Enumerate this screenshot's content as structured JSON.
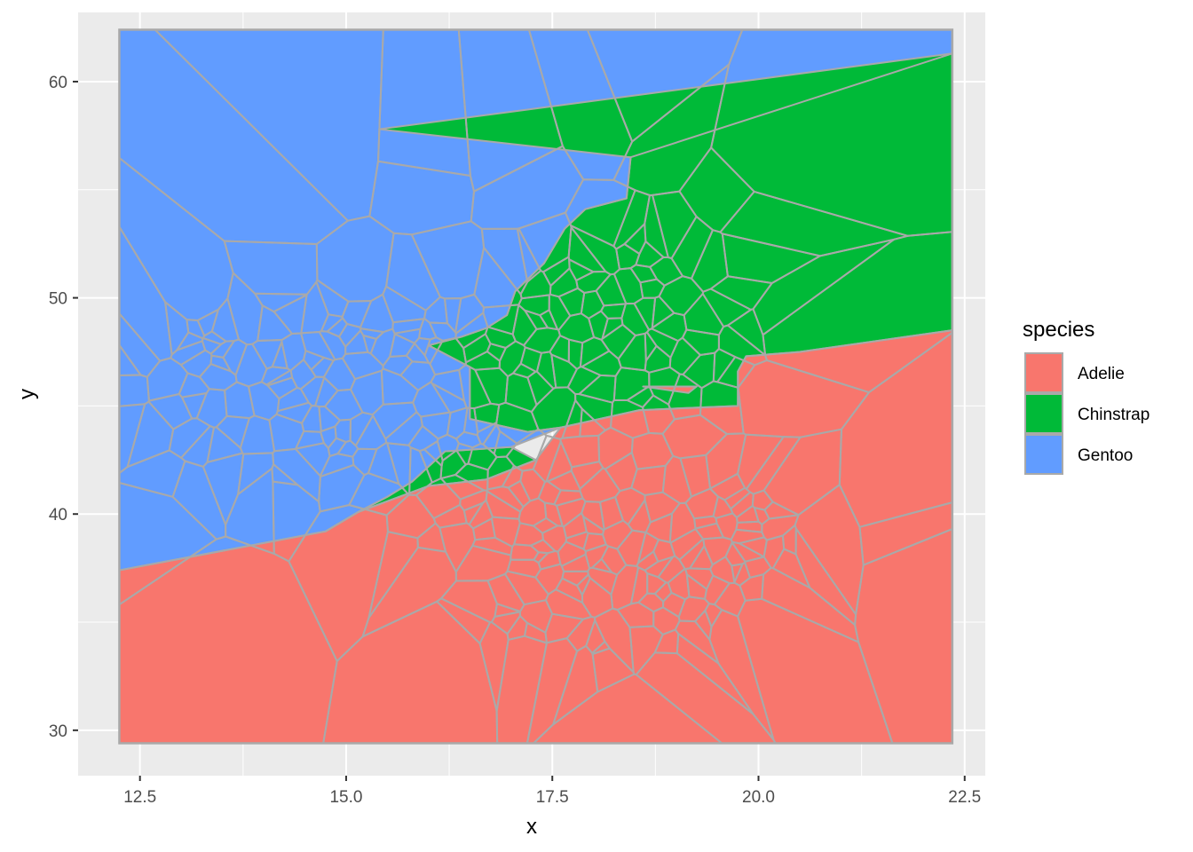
{
  "chart_data": {
    "type": "voronoi",
    "title": "",
    "xlabel": "x",
    "ylabel": "y",
    "xlim": [
      11.75,
      22.75
    ],
    "ylim": [
      27.9,
      63.2
    ],
    "bbox_data": [
      12.25,
      22.35,
      29.4,
      62.4
    ],
    "xticks": [
      12.5,
      15.0,
      17.5,
      20.0,
      22.5
    ],
    "xtick_labels": [
      "12.5",
      "15.0",
      "17.5",
      "20.0",
      "22.5"
    ],
    "yticks": [
      30,
      40,
      50,
      60
    ],
    "ytick_labels": [
      "30",
      "40",
      "50",
      "60"
    ],
    "grid": true,
    "legend": {
      "title": "species",
      "position": "right",
      "entries": [
        {
          "name": "Adelie",
          "color": "#F8766D"
        },
        {
          "name": "Chinstrap",
          "color": "#00BA38"
        },
        {
          "name": "Gentoo",
          "color": "#619CFF"
        }
      ]
    },
    "colors": {
      "panel": "#EBEBEB",
      "grid_major": "#FFFFFF",
      "cell_border": "#A9A9A9",
      "Adelie": "#F8766D",
      "Chinstrap": "#00BA38",
      "Gentoo": "#619CFF"
    },
    "regions": [
      {
        "species": "Gentoo",
        "polygon": [
          [
            12.25,
            62.4
          ],
          [
            22.35,
            62.4
          ],
          [
            22.35,
            61.3
          ],
          [
            18.45,
            56.5
          ],
          [
            18.4,
            54.6
          ],
          [
            17.9,
            54.1
          ],
          [
            17.65,
            53.2
          ],
          [
            17.4,
            51.6
          ],
          [
            17.05,
            50.3
          ],
          [
            16.95,
            49.2
          ],
          [
            16.7,
            48.6
          ],
          [
            16.4,
            48.2
          ],
          [
            16.0,
            47.8
          ],
          [
            16.5,
            46.8
          ],
          [
            16.5,
            44.4
          ],
          [
            17.2,
            43.8
          ],
          [
            17.6,
            44.0
          ],
          [
            17.0,
            43.1
          ],
          [
            16.2,
            42.9
          ],
          [
            15.8,
            41.5
          ],
          [
            15.5,
            40.8
          ],
          [
            15.15,
            40.1
          ],
          [
            14.75,
            39.2
          ],
          [
            12.25,
            37.4
          ]
        ]
      },
      {
        "species": "Chinstrap",
        "polygon": [
          [
            15.4,
            57.8
          ],
          [
            22.35,
            61.3
          ],
          [
            22.35,
            48.5
          ],
          [
            20.5,
            47.5
          ],
          [
            19.85,
            47.3
          ],
          [
            19.75,
            46.6
          ],
          [
            19.75,
            45.0
          ],
          [
            19.1,
            44.9
          ],
          [
            18.55,
            44.8
          ],
          [
            17.6,
            44.0
          ],
          [
            17.2,
            43.8
          ],
          [
            16.5,
            44.4
          ],
          [
            16.5,
            46.8
          ],
          [
            16.0,
            47.8
          ],
          [
            16.4,
            48.2
          ],
          [
            16.7,
            48.6
          ],
          [
            16.95,
            49.2
          ],
          [
            17.05,
            50.3
          ],
          [
            17.4,
            51.6
          ],
          [
            17.65,
            53.2
          ],
          [
            17.9,
            54.1
          ],
          [
            18.4,
            54.6
          ],
          [
            18.45,
            56.5
          ]
        ]
      },
      {
        "species": "Chinstrap",
        "polygon": [
          [
            15.15,
            40.1
          ],
          [
            15.5,
            40.8
          ],
          [
            15.8,
            41.5
          ],
          [
            16.2,
            42.9
          ],
          [
            17.0,
            43.1
          ],
          [
            17.3,
            42.5
          ],
          [
            16.7,
            41.6
          ],
          [
            16.0,
            41.3
          ]
        ]
      },
      {
        "species": "Adelie",
        "polygon": [
          [
            12.25,
            29.4
          ],
          [
            22.35,
            29.4
          ],
          [
            22.35,
            48.5
          ],
          [
            20.5,
            47.5
          ],
          [
            19.85,
            47.3
          ],
          [
            19.75,
            46.6
          ],
          [
            19.75,
            45.0
          ],
          [
            19.1,
            44.9
          ],
          [
            18.55,
            44.8
          ],
          [
            17.6,
            44.0
          ],
          [
            17.3,
            42.5
          ],
          [
            16.7,
            41.6
          ],
          [
            16.0,
            41.3
          ],
          [
            15.15,
            40.1
          ],
          [
            14.75,
            39.2
          ],
          [
            12.25,
            37.4
          ]
        ]
      },
      {
        "species": "Adelie",
        "polygon": [
          [
            18.6,
            45.9
          ],
          [
            19.25,
            45.9
          ],
          [
            19.15,
            45.6
          ]
        ]
      }
    ]
  }
}
